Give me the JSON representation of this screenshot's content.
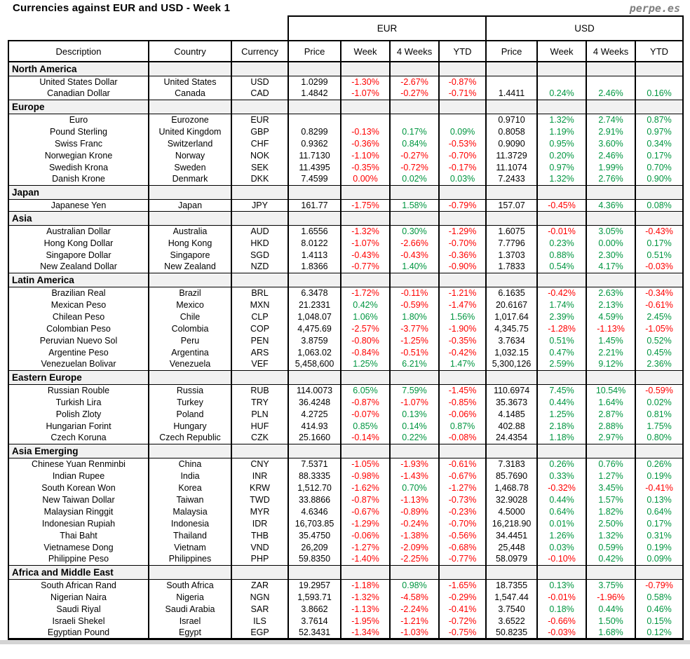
{
  "watermark": "perpe.es",
  "colors": {
    "positive": "#009640",
    "negative": "#ff0000",
    "section_background": "#f1f1f1",
    "border": "#000000",
    "watermark_gray": "#808080"
  },
  "chart_data": {
    "type": "table",
    "title": "Currencies against EUR and USD - Week 1",
    "group_headers": [
      {
        "label": "EUR",
        "span": 4
      },
      {
        "label": "USD",
        "span": 4
      }
    ],
    "columns": [
      "Description",
      "Country",
      "Currency",
      "Price",
      "Week",
      "4 Weeks",
      "YTD",
      "Price",
      "Week",
      "4 Weeks",
      "YTD"
    ],
    "sections": [
      {
        "name": "North America",
        "rows": [
          {
            "description": "United States Dollar",
            "country": "United States",
            "currency": "USD",
            "eur": [
              "1.0299",
              "-1.30%",
              "-2.67%",
              "-0.87%"
            ],
            "usd": [
              "",
              "",
              "",
              ""
            ]
          },
          {
            "description": "Canadian Dollar",
            "country": "Canada",
            "currency": "CAD",
            "eur": [
              "1.4842",
              "-1.07%",
              "-0.27%",
              "-0.71%"
            ],
            "usd": [
              "1.4411",
              "0.24%",
              "2.46%",
              "0.16%"
            ]
          }
        ]
      },
      {
        "name": "Europe",
        "rows": [
          {
            "description": "Euro",
            "country": "Eurozone",
            "currency": "EUR",
            "eur": [
              "",
              "",
              "",
              ""
            ],
            "usd": [
              "0.9710",
              "1.32%",
              "2.74%",
              "0.87%"
            ]
          },
          {
            "description": "Pound Sterling",
            "country": "United Kingdom",
            "currency": "GBP",
            "eur": [
              "0.8299",
              "-0.13%",
              "0.17%",
              "0.09%"
            ],
            "usd": [
              "0.8058",
              "1.19%",
              "2.91%",
              "0.97%"
            ]
          },
          {
            "description": "Swiss Franc",
            "country": "Switzerland",
            "currency": "CHF",
            "eur": [
              "0.9362",
              "-0.36%",
              "0.84%",
              "-0.53%"
            ],
            "usd": [
              "0.9090",
              "0.95%",
              "3.60%",
              "0.34%"
            ]
          },
          {
            "description": "Norwegian Krone",
            "country": "Norway",
            "currency": "NOK",
            "eur": [
              "11.7130",
              "-1.10%",
              "-0.27%",
              "-0.70%"
            ],
            "usd": [
              "11.3729",
              "0.20%",
              "2.46%",
              "0.17%"
            ]
          },
          {
            "description": "Swedish Krona",
            "country": "Sweden",
            "currency": "SEK",
            "eur": [
              "11.4395",
              "-0.35%",
              "-0.72%",
              "-0.17%"
            ],
            "usd": [
              "11.1074",
              "0.97%",
              "1.99%",
              "0.70%"
            ]
          },
          {
            "description": "Danish Krone",
            "country": "Denmark",
            "currency": "DKK",
            "eur": [
              "7.4599",
              "0.00%",
              "0.02%",
              "0.03%"
            ],
            "usd": [
              "7.2433",
              "1.32%",
              "2.76%",
              "0.90%"
            ],
            "overrides": {
              "eur.1": "negative"
            }
          }
        ]
      },
      {
        "name": "Japan",
        "rows": [
          {
            "description": "Japanese Yen",
            "country": "Japan",
            "currency": "JPY",
            "eur": [
              "161.77",
              "-1.75%",
              "1.58%",
              "-0.79%"
            ],
            "usd": [
              "157.07",
              "-0.45%",
              "4.36%",
              "0.08%"
            ]
          }
        ]
      },
      {
        "name": "Asia",
        "rows": [
          {
            "description": "Australian Dollar",
            "country": "Australia",
            "currency": "AUD",
            "eur": [
              "1.6556",
              "-1.32%",
              "0.30%",
              "-1.29%"
            ],
            "usd": [
              "1.6075",
              "-0.01%",
              "3.05%",
              "-0.43%"
            ]
          },
          {
            "description": "Hong Kong Dollar",
            "country": "Hong Kong",
            "currency": "HKD",
            "eur": [
              "8.0122",
              "-1.07%",
              "-2.66%",
              "-0.70%"
            ],
            "usd": [
              "7.7796",
              "0.23%",
              "0.00%",
              "0.17%"
            ]
          },
          {
            "description": "Singapore Dollar",
            "country": "Singapore",
            "currency": "SGD",
            "eur": [
              "1.4113",
              "-0.43%",
              "-0.43%",
              "-0.36%"
            ],
            "usd": [
              "1.3703",
              "0.88%",
              "2.30%",
              "0.51%"
            ]
          },
          {
            "description": "New Zealand Dollar",
            "country": "New Zealand",
            "currency": "NZD",
            "eur": [
              "1.8366",
              "-0.77%",
              "1.40%",
              "-0.90%"
            ],
            "usd": [
              "1.7833",
              "0.54%",
              "4.17%",
              "-0.03%"
            ]
          }
        ]
      },
      {
        "name": "Latin America",
        "rows": [
          {
            "description": "Brazilian Real",
            "country": "Brazil",
            "currency": "BRL",
            "eur": [
              "6.3478",
              "-1.72%",
              "-0.11%",
              "-1.21%"
            ],
            "usd": [
              "6.1635",
              "-0.42%",
              "2.63%",
              "-0.34%"
            ]
          },
          {
            "description": "Mexican Peso",
            "country": "Mexico",
            "currency": "MXN",
            "eur": [
              "21.2331",
              "0.42%",
              "-0.59%",
              "-1.47%"
            ],
            "usd": [
              "20.6167",
              "1.74%",
              "2.13%",
              "-0.61%"
            ]
          },
          {
            "description": "Chilean Peso",
            "country": "Chile",
            "currency": "CLP",
            "eur": [
              "1,048.07",
              "1.06%",
              "1.80%",
              "1.56%"
            ],
            "usd": [
              "1,017.64",
              "2.39%",
              "4.59%",
              "2.45%"
            ]
          },
          {
            "description": "Colombian Peso",
            "country": "Colombia",
            "currency": "COP",
            "eur": [
              "4,475.69",
              "-2.57%",
              "-3.77%",
              "-1.90%"
            ],
            "usd": [
              "4,345.75",
              "-1.28%",
              "-1.13%",
              "-1.05%"
            ]
          },
          {
            "description": "Peruvian Nuevo Sol",
            "country": "Peru",
            "currency": "PEN",
            "eur": [
              "3.8759",
              "-0.80%",
              "-1.25%",
              "-0.35%"
            ],
            "usd": [
              "3.7634",
              "0.51%",
              "1.45%",
              "0.52%"
            ]
          },
          {
            "description": "Argentine Peso",
            "country": "Argentina",
            "currency": "ARS",
            "eur": [
              "1,063.02",
              "-0.84%",
              "-0.51%",
              "-0.42%"
            ],
            "usd": [
              "1,032.15",
              "0.47%",
              "2.21%",
              "0.45%"
            ]
          },
          {
            "description": "Venezuelan Bolivar",
            "country": "Venezuela",
            "currency": "VEF",
            "eur": [
              "5,458,600",
              "1.25%",
              "6.21%",
              "1.47%"
            ],
            "usd": [
              "5,300,126",
              "2.59%",
              "9.12%",
              "2.36%"
            ]
          }
        ]
      },
      {
        "name": "Eastern Europe",
        "rows": [
          {
            "description": "Russian Rouble",
            "country": "Russia",
            "currency": "RUB",
            "eur": [
              "114.0073",
              "6.05%",
              "7.59%",
              "-1.45%"
            ],
            "usd": [
              "110.6974",
              "7.45%",
              "10.54%",
              "-0.59%"
            ]
          },
          {
            "description": "Turkish Lira",
            "country": "Turkey",
            "currency": "TRY",
            "eur": [
              "36.4248",
              "-0.87%",
              "-1.07%",
              "-0.85%"
            ],
            "usd": [
              "35.3673",
              "0.44%",
              "1.64%",
              "0.02%"
            ]
          },
          {
            "description": "Polish Zloty",
            "country": "Poland",
            "currency": "PLN",
            "eur": [
              "4.2725",
              "-0.07%",
              "0.13%",
              "-0.06%"
            ],
            "usd": [
              "4.1485",
              "1.25%",
              "2.87%",
              "0.81%"
            ]
          },
          {
            "description": "Hungarian Forint",
            "country": "Hungary",
            "currency": "HUF",
            "eur": [
              "414.93",
              "0.85%",
              "0.14%",
              "0.87%"
            ],
            "usd": [
              "402.88",
              "2.18%",
              "2.88%",
              "1.75%"
            ]
          },
          {
            "description": "Czech Koruna",
            "country": "Czech Republic",
            "currency": "CZK",
            "eur": [
              "25.1660",
              "-0.14%",
              "0.22%",
              "-0.08%"
            ],
            "usd": [
              "24.4354",
              "1.18%",
              "2.97%",
              "0.80%"
            ]
          }
        ]
      },
      {
        "name": "Asia Emerging",
        "rows": [
          {
            "description": "Chinese Yuan Renminbi",
            "country": "China",
            "currency": "CNY",
            "eur": [
              "7.5371",
              "-1.05%",
              "-1.93%",
              "-0.61%"
            ],
            "usd": [
              "7.3183",
              "0.26%",
              "0.76%",
              "0.26%"
            ]
          },
          {
            "description": "Indian Rupee",
            "country": "India",
            "currency": "INR",
            "eur": [
              "88.3335",
              "-0.98%",
              "-1.43%",
              "-0.67%"
            ],
            "usd": [
              "85.7690",
              "0.33%",
              "1.27%",
              "0.19%"
            ]
          },
          {
            "description": "South Korean Won",
            "country": "Korea",
            "currency": "KRW",
            "eur": [
              "1,512.70",
              "-1.62%",
              "0.70%",
              "-1.27%"
            ],
            "usd": [
              "1,468.78",
              "-0.32%",
              "3.45%",
              "-0.41%"
            ]
          },
          {
            "description": "New Taiwan Dollar",
            "country": "Taiwan",
            "currency": "TWD",
            "eur": [
              "33.8866",
              "-0.87%",
              "-1.13%",
              "-0.73%"
            ],
            "usd": [
              "32.9028",
              "0.44%",
              "1.57%",
              "0.13%"
            ]
          },
          {
            "description": "Malaysian Ringgit",
            "country": "Malaysia",
            "currency": "MYR",
            "eur": [
              "4.6346",
              "-0.67%",
              "-0.89%",
              "-0.23%"
            ],
            "usd": [
              "4.5000",
              "0.64%",
              "1.82%",
              "0.64%"
            ]
          },
          {
            "description": "Indonesian Rupiah",
            "country": "Indonesia",
            "currency": "IDR",
            "eur": [
              "16,703.85",
              "-1.29%",
              "-0.24%",
              "-0.70%"
            ],
            "usd": [
              "16,218.90",
              "0.01%",
              "2.50%",
              "0.17%"
            ]
          },
          {
            "description": "Thai Baht",
            "country": "Thailand",
            "currency": "THB",
            "eur": [
              "35.4750",
              "-0.06%",
              "-1.38%",
              "-0.56%"
            ],
            "usd": [
              "34.4451",
              "1.26%",
              "1.32%",
              "0.31%"
            ]
          },
          {
            "description": "Vietnamese Dong",
            "country": "Vietnam",
            "currency": "VND",
            "eur": [
              "26,209",
              "-1.27%",
              "-2.09%",
              "-0.68%"
            ],
            "usd": [
              "25,448",
              "0.03%",
              "0.59%",
              "0.19%"
            ]
          },
          {
            "description": "Philippine Peso",
            "country": "Philippines",
            "currency": "PHP",
            "eur": [
              "59.8350",
              "-1.40%",
              "-2.25%",
              "-0.77%"
            ],
            "usd": [
              "58.0979",
              "-0.10%",
              "0.42%",
              "0.09%"
            ]
          }
        ]
      },
      {
        "name": "Africa and Middle East",
        "rows": [
          {
            "description": "South African Rand",
            "country": "South Africa",
            "currency": "ZAR",
            "eur": [
              "19.2957",
              "-1.18%",
              "0.98%",
              "-1.65%"
            ],
            "usd": [
              "18.7355",
              "0.13%",
              "3.75%",
              "-0.79%"
            ]
          },
          {
            "description": "Nigerian Naira",
            "country": "Nigeria",
            "currency": "NGN",
            "eur": [
              "1,593.71",
              "-1.32%",
              "-4.58%",
              "-0.29%"
            ],
            "usd": [
              "1,547.44",
              "-0.01%",
              "-1.96%",
              "0.58%"
            ]
          },
          {
            "description": "Saudi Riyal",
            "country": "Saudi Arabia",
            "currency": "SAR",
            "eur": [
              "3.8662",
              "-1.13%",
              "-2.24%",
              "-0.41%"
            ],
            "usd": [
              "3.7540",
              "0.18%",
              "0.44%",
              "0.46%"
            ]
          },
          {
            "description": "Israeli Shekel",
            "country": "Israel",
            "currency": "ILS",
            "eur": [
              "3.7614",
              "-1.95%",
              "-1.21%",
              "-0.72%"
            ],
            "usd": [
              "3.6522",
              "-0.66%",
              "1.50%",
              "0.15%"
            ]
          },
          {
            "description": "Egyptian Pound",
            "country": "Egypt",
            "currency": "EGP",
            "eur": [
              "52.3431",
              "-1.34%",
              "-1.03%",
              "-0.75%"
            ],
            "usd": [
              "50.8235",
              "-0.03%",
              "1.68%",
              "0.12%"
            ]
          }
        ]
      }
    ]
  }
}
